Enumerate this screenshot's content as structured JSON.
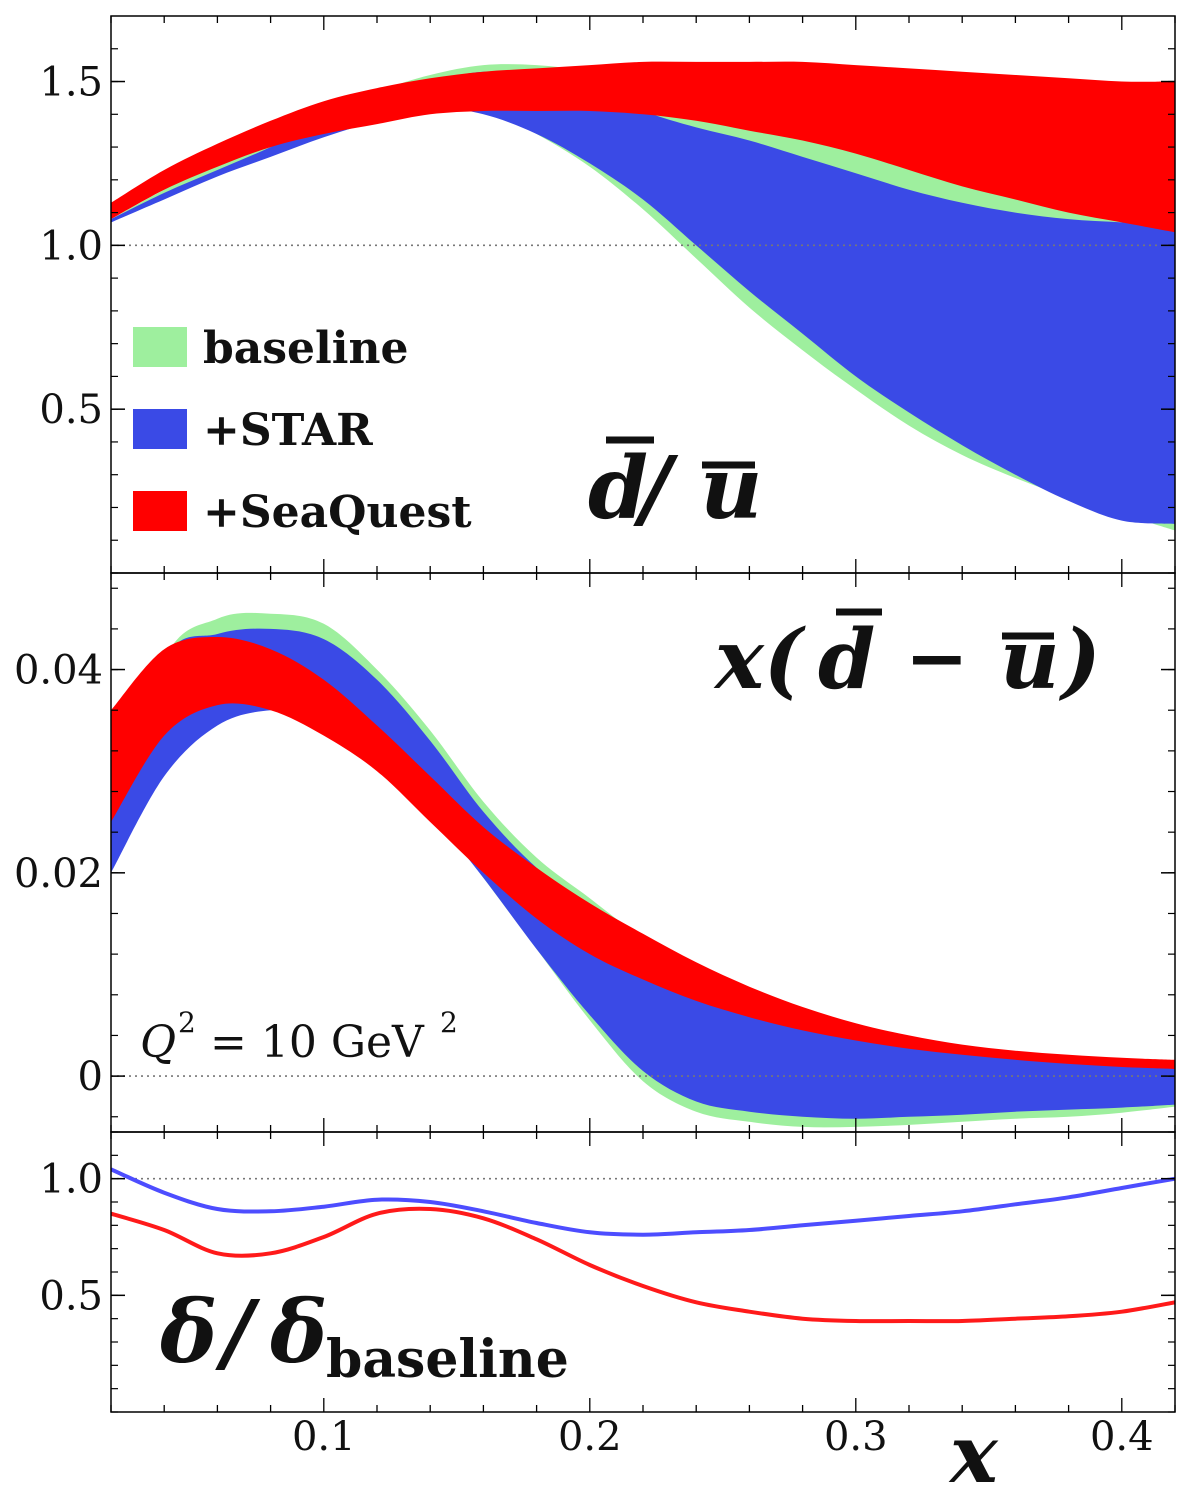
{
  "colors": {
    "baseline": "#9eef9e",
    "star": "#3a4ae6",
    "seaquest": "#ff0000",
    "star_line": "#4d4dff",
    "seaquest_line": "#ff1a1a",
    "reference_line": "#777777"
  },
  "legend": {
    "items": [
      {
        "label": "baseline",
        "color": "#9eef9e"
      },
      {
        "label": "+STAR",
        "color": "#3a4ae6"
      },
      {
        "label": "+SeaQuest",
        "color": "#ff0000"
      }
    ]
  },
  "x_axis": {
    "label": "x",
    "ticks": [
      "0.1",
      "0.2",
      "0.3",
      "0.4"
    ]
  },
  "chart_data": [
    {
      "type": "area",
      "panel": "top",
      "label": "d̄/ū",
      "xlim": [
        0.02,
        0.42
      ],
      "ylim": [
        0.0,
        1.7
      ],
      "y_ticks": [
        "0.5",
        "1.0",
        "1.5"
      ],
      "reference_line": 1.0,
      "x": [
        0.02,
        0.04,
        0.06,
        0.08,
        0.1,
        0.12,
        0.14,
        0.16,
        0.18,
        0.2,
        0.22,
        0.24,
        0.26,
        0.28,
        0.3,
        0.32,
        0.34,
        0.36,
        0.38,
        0.4,
        0.42
      ],
      "series": [
        {
          "name": "baseline",
          "upper": [
            1.08,
            1.17,
            1.25,
            1.33,
            1.41,
            1.47,
            1.52,
            1.55,
            1.55,
            1.53,
            1.49,
            1.44,
            1.39,
            1.34,
            1.29,
            1.24,
            1.19,
            1.15,
            1.11,
            1.11,
            1.12
          ],
          "lower": [
            1.07,
            1.15,
            1.22,
            1.28,
            1.34,
            1.4,
            1.44,
            1.42,
            1.34,
            1.24,
            1.11,
            0.96,
            0.81,
            0.68,
            0.56,
            0.45,
            0.36,
            0.29,
            0.23,
            0.18,
            0.13
          ]
        },
        {
          "name": "+STAR",
          "upper": [
            1.08,
            1.16,
            1.23,
            1.3,
            1.38,
            1.45,
            1.5,
            1.53,
            1.52,
            1.48,
            1.41,
            1.36,
            1.32,
            1.27,
            1.22,
            1.17,
            1.13,
            1.1,
            1.08,
            1.07,
            1.06
          ],
          "lower": [
            1.07,
            1.14,
            1.21,
            1.27,
            1.33,
            1.38,
            1.42,
            1.4,
            1.34,
            1.25,
            1.14,
            1.0,
            0.86,
            0.73,
            0.6,
            0.49,
            0.39,
            0.3,
            0.22,
            0.16,
            0.15
          ]
        },
        {
          "name": "+SeaQuest",
          "upper": [
            1.13,
            1.23,
            1.31,
            1.38,
            1.44,
            1.48,
            1.51,
            1.53,
            1.54,
            1.55,
            1.56,
            1.56,
            1.56,
            1.56,
            1.55,
            1.54,
            1.53,
            1.52,
            1.51,
            1.5,
            1.5
          ],
          "lower": [
            1.08,
            1.17,
            1.24,
            1.3,
            1.34,
            1.37,
            1.4,
            1.41,
            1.41,
            1.41,
            1.4,
            1.38,
            1.35,
            1.32,
            1.28,
            1.23,
            1.18,
            1.14,
            1.1,
            1.07,
            1.04
          ]
        }
      ]
    },
    {
      "type": "area",
      "panel": "middle",
      "label": "x(d̄ − ū)",
      "annotation": "Q² = 10 GeV²",
      "xlim": [
        0.02,
        0.42
      ],
      "ylim": [
        -0.0055,
        0.0495
      ],
      "y_ticks": [
        "0",
        "0.02",
        "0.04"
      ],
      "reference_line": 0.0,
      "x": [
        0.02,
        0.04,
        0.06,
        0.08,
        0.1,
        0.12,
        0.14,
        0.16,
        0.18,
        0.2,
        0.22,
        0.24,
        0.26,
        0.28,
        0.3,
        0.32,
        0.34,
        0.36,
        0.38,
        0.4,
        0.42
      ],
      "series": [
        {
          "name": "baseline",
          "upper": [
            0.024,
            0.041,
            0.045,
            0.0455,
            0.0445,
            0.04,
            0.034,
            0.027,
            0.0215,
            0.0175,
            0.0135,
            0.01,
            0.0075,
            0.0055,
            0.0042,
            0.0032,
            0.0024,
            0.0018,
            0.0014,
            0.0012,
            0.0011
          ],
          "lower": [
            0.021,
            0.031,
            0.0355,
            0.0365,
            0.036,
            0.0325,
            0.0265,
            0.0195,
            0.0125,
            0.0055,
            -0.0005,
            -0.0035,
            -0.0045,
            -0.005,
            -0.005,
            -0.0048,
            -0.0045,
            -0.0042,
            -0.004,
            -0.0036,
            -0.003
          ]
        },
        {
          "name": "+STAR",
          "upper": [
            0.025,
            0.041,
            0.0435,
            0.044,
            0.043,
            0.039,
            0.033,
            0.026,
            0.0205,
            0.0165,
            0.0125,
            0.0095,
            0.0072,
            0.0053,
            0.004,
            0.003,
            0.0022,
            0.0017,
            0.0013,
            0.0011,
            0.001
          ],
          "lower": [
            0.02,
            0.0295,
            0.0345,
            0.036,
            0.0355,
            0.032,
            0.026,
            0.0195,
            0.0125,
            0.006,
            0.0005,
            -0.0025,
            -0.0035,
            -0.004,
            -0.0042,
            -0.004,
            -0.0038,
            -0.0035,
            -0.0033,
            -0.0031,
            -0.0028
          ]
        },
        {
          "name": "+SeaQuest",
          "upper": [
            0.036,
            0.042,
            0.0432,
            0.042,
            0.039,
            0.0345,
            0.0295,
            0.0245,
            0.0205,
            0.017,
            0.014,
            0.0112,
            0.0088,
            0.0068,
            0.0052,
            0.004,
            0.0031,
            0.0025,
            0.0021,
            0.0018,
            0.0016
          ],
          "lower": [
            0.025,
            0.0335,
            0.0365,
            0.036,
            0.0335,
            0.03,
            0.025,
            0.02,
            0.0155,
            0.012,
            0.0095,
            0.0074,
            0.0058,
            0.0045,
            0.0035,
            0.0027,
            0.0021,
            0.0016,
            0.0012,
            0.0009,
            0.0007
          ]
        }
      ]
    },
    {
      "type": "line",
      "panel": "bottom",
      "label": "δ/δ_baseline",
      "xlim": [
        0.02,
        0.42
      ],
      "ylim": [
        0.0,
        1.2
      ],
      "y_ticks": [
        "0.5",
        "1.0"
      ],
      "reference_line": 1.0,
      "x": [
        0.02,
        0.04,
        0.06,
        0.08,
        0.1,
        0.12,
        0.14,
        0.16,
        0.18,
        0.2,
        0.22,
        0.24,
        0.26,
        0.28,
        0.3,
        0.32,
        0.34,
        0.36,
        0.38,
        0.4,
        0.42
      ],
      "series": [
        {
          "name": "+STAR",
          "y": [
            1.04,
            0.94,
            0.87,
            0.86,
            0.88,
            0.91,
            0.9,
            0.86,
            0.81,
            0.77,
            0.76,
            0.77,
            0.78,
            0.8,
            0.82,
            0.84,
            0.86,
            0.89,
            0.92,
            0.96,
            1.0
          ]
        },
        {
          "name": "+SeaQuest",
          "y": [
            0.85,
            0.78,
            0.68,
            0.68,
            0.75,
            0.85,
            0.87,
            0.83,
            0.74,
            0.63,
            0.54,
            0.47,
            0.43,
            0.4,
            0.39,
            0.39,
            0.39,
            0.4,
            0.41,
            0.43,
            0.47
          ]
        }
      ]
    }
  ],
  "panel_labels": {
    "top": {
      "main": "d",
      "slash": "/",
      "second": "u"
    },
    "middle": {
      "open": "x(",
      "first": "d",
      "minus": "−",
      "second": "u",
      "close": ")"
    },
    "bottom": {
      "main": "δ",
      "slash": "/",
      "second": "δ",
      "subscript": "baseline"
    },
    "annotation": {
      "q": "Q",
      "exp": "2",
      "rest": "= 10 GeV",
      "exp2": "2"
    }
  }
}
